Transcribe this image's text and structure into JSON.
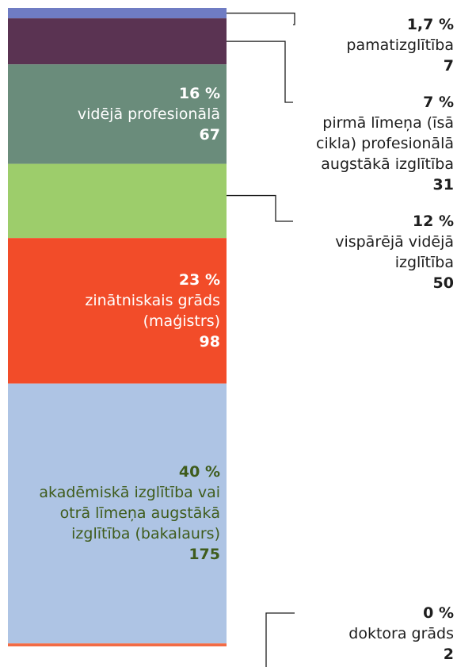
{
  "chart_data": {
    "type": "stacked-column",
    "series": [
      {
        "name": "pamatizglītība",
        "color": "#6f7cc3",
        "value": 7,
        "percent": 1.7,
        "percent_label": "1,7 %"
      },
      {
        "name": "pirmā līmeņa (īsā cikla) profesionālā augstākā izglītība",
        "color": "#5a3352",
        "value": 31,
        "percent": 7,
        "percent_label": "7 %"
      },
      {
        "name": "vidējā profesionālā",
        "color": "#6a8c7b",
        "value": 67,
        "percent": 16,
        "percent_label": "16 %",
        "label_color": "#ffffff"
      },
      {
        "name": "vispārējā vidējā izglītība",
        "color": "#9dcd6b",
        "value": 50,
        "percent": 12,
        "percent_label": "12 %"
      },
      {
        "name": "zinātniskais grāds (maģistrs)",
        "color": "#f24c29",
        "value": 98,
        "percent": 23,
        "percent_label": "23 %",
        "label_color": "#ffffff"
      },
      {
        "name": "akadēmiskā izglītība vai otrā līmeņa augstākā izglītība (bakalaurs)",
        "color": "#aec4e4",
        "value": 175,
        "percent": 40,
        "percent_label": "40 %",
        "label_color": "#3f5c1c"
      },
      {
        "name": "doktora grāds",
        "color": "#f26b45",
        "value": 2,
        "percent": 0,
        "percent_label": "0 %"
      }
    ]
  }
}
